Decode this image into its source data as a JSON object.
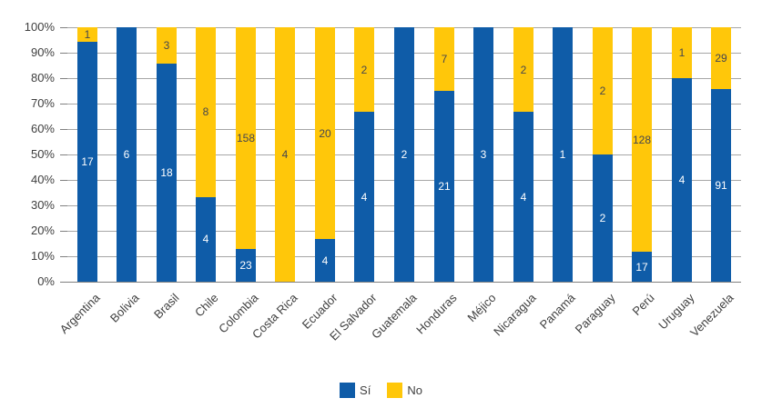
{
  "chart_data": {
    "type": "bar",
    "variant": "stacked-100-percent",
    "orientation": "vertical",
    "categories": [
      "Argentina",
      "Bolivia",
      "Brasil",
      "Chile",
      "Colombia",
      "Costa Rica",
      "Ecuador",
      "El Salvador",
      "Guatemala",
      "Honduras",
      "Méjico",
      "Nicaragua",
      "Panamá",
      "Paraguay",
      "Perú",
      "Uruguay",
      "Venezuela"
    ],
    "series": [
      {
        "name": "Sí",
        "color": "#0f5ca8",
        "label_color": "#ffffff",
        "values": [
          17,
          6,
          18,
          4,
          23,
          0,
          4,
          4,
          2,
          21,
          3,
          4,
          1,
          2,
          17,
          4,
          91
        ]
      },
      {
        "name": "No",
        "color": "#ffc70a",
        "label_color": "#45464f",
        "values": [
          1,
          0,
          3,
          8,
          158,
          4,
          20,
          2,
          0,
          7,
          0,
          2,
          0,
          2,
          128,
          1,
          29
        ]
      }
    ],
    "y_axis": {
      "min": 0,
      "max": 100,
      "unit": "percent",
      "ticks": [
        "0%",
        "10%",
        "20%",
        "30%",
        "40%",
        "50%",
        "60%",
        "70%",
        "80%",
        "90%",
        "100%"
      ]
    },
    "grid": true,
    "data_labels": "segment-centered-counts",
    "legend": {
      "position": "bottom",
      "entries": [
        "Sí",
        "No"
      ]
    },
    "styles": {
      "gridline_color": "#a6a6a6",
      "axis_line_color": "#808080",
      "tick_label_color": "#404040",
      "category_label_color": "#404040",
      "background_color": "#ffffff"
    }
  }
}
